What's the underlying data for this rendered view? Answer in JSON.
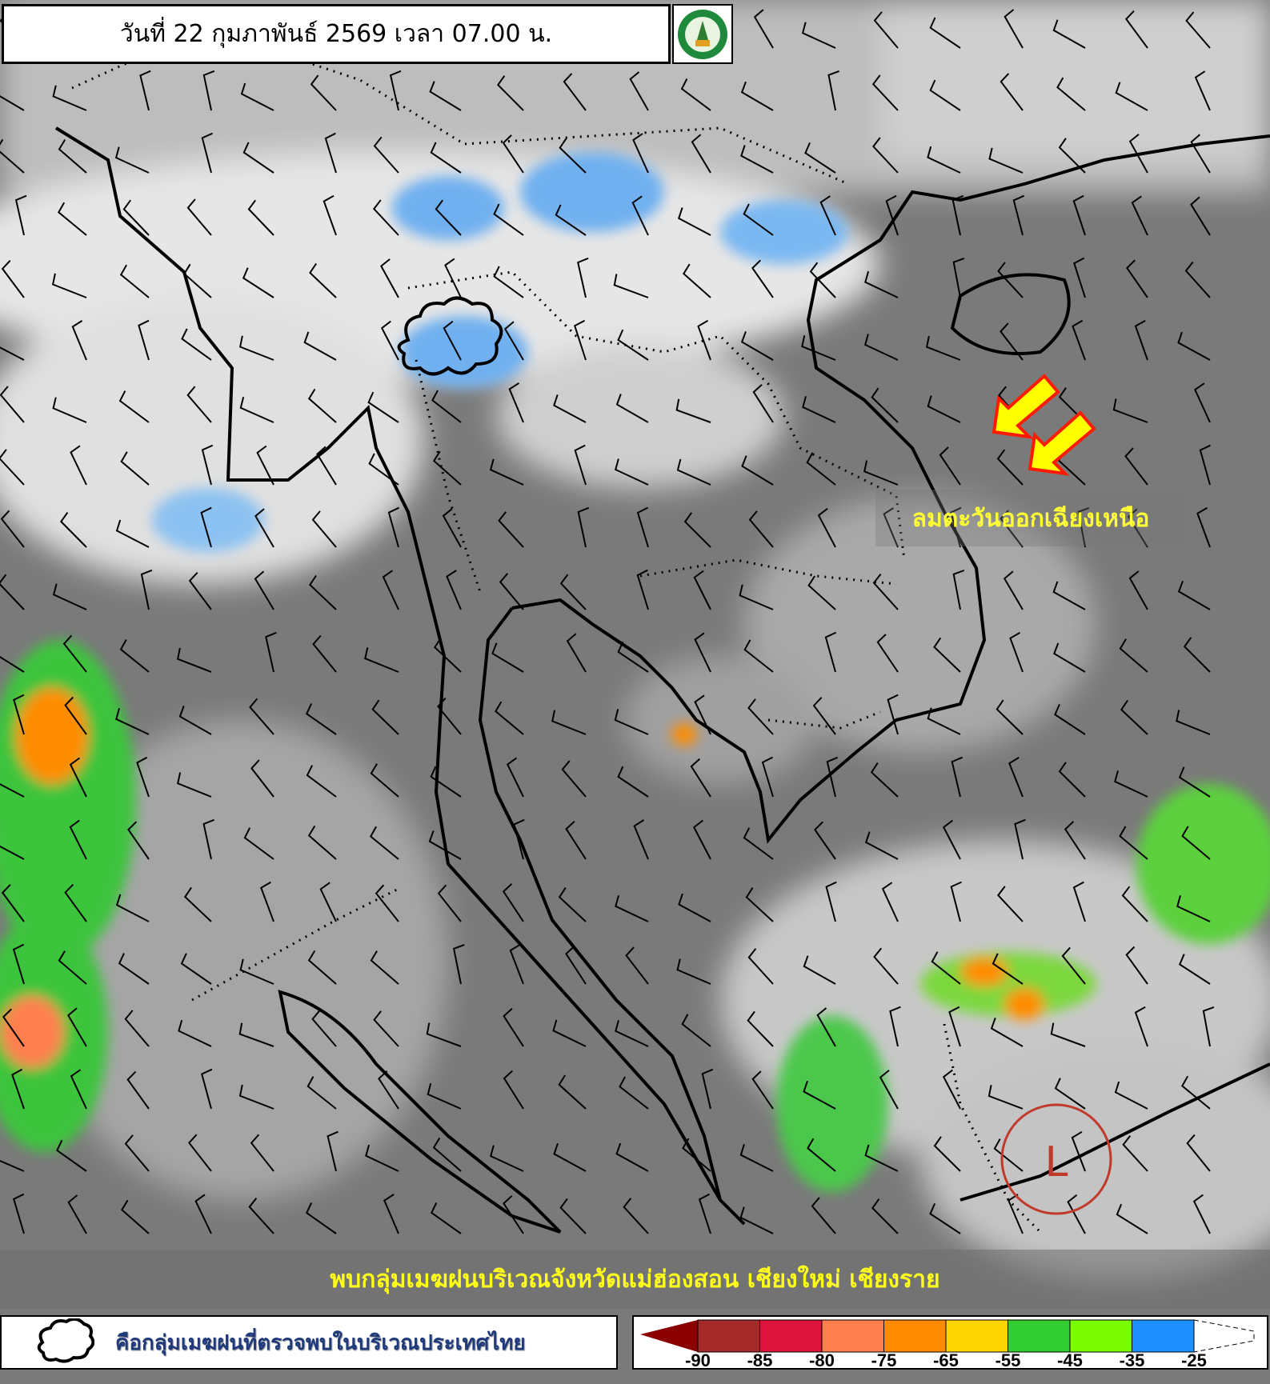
{
  "header": {
    "title": "วันที่ 22 กุมภาพันธ์ 2569 เวลา 07.00 น.",
    "logo": "กรมอุตุนิยมวิทยา METEOROLOGICAL DEPARTMENT"
  },
  "annotations": {
    "wind_label": "ลมตะวันออกเฉียงเหนือ",
    "wind_arrow_color": "#ffff00",
    "low_pressure_symbol": "L",
    "low_pressure_color": "#c0392b"
  },
  "banner": {
    "text": "พบกลุ่มเมฆฝนบริเวณจังหวัดแม่ฮ่องสอน เชียงใหม่ เชียงราย"
  },
  "legend": {
    "cloud_symbol_text": "คือกลุ่มเมฆฝนที่ตรวจพบในบริเวณประเทศไทย",
    "scale": {
      "colors": [
        "#8b0000",
        "#a52a2a",
        "#dc143c",
        "#ff7f50",
        "#ff8c00",
        "#ffd700",
        "#32cd32",
        "#7cfc00",
        "#1e90ff"
      ],
      "labels": [
        "-90",
        "-85",
        "-80",
        "-75",
        "-65",
        "-55",
        "-45",
        "-35",
        "-25"
      ]
    }
  }
}
